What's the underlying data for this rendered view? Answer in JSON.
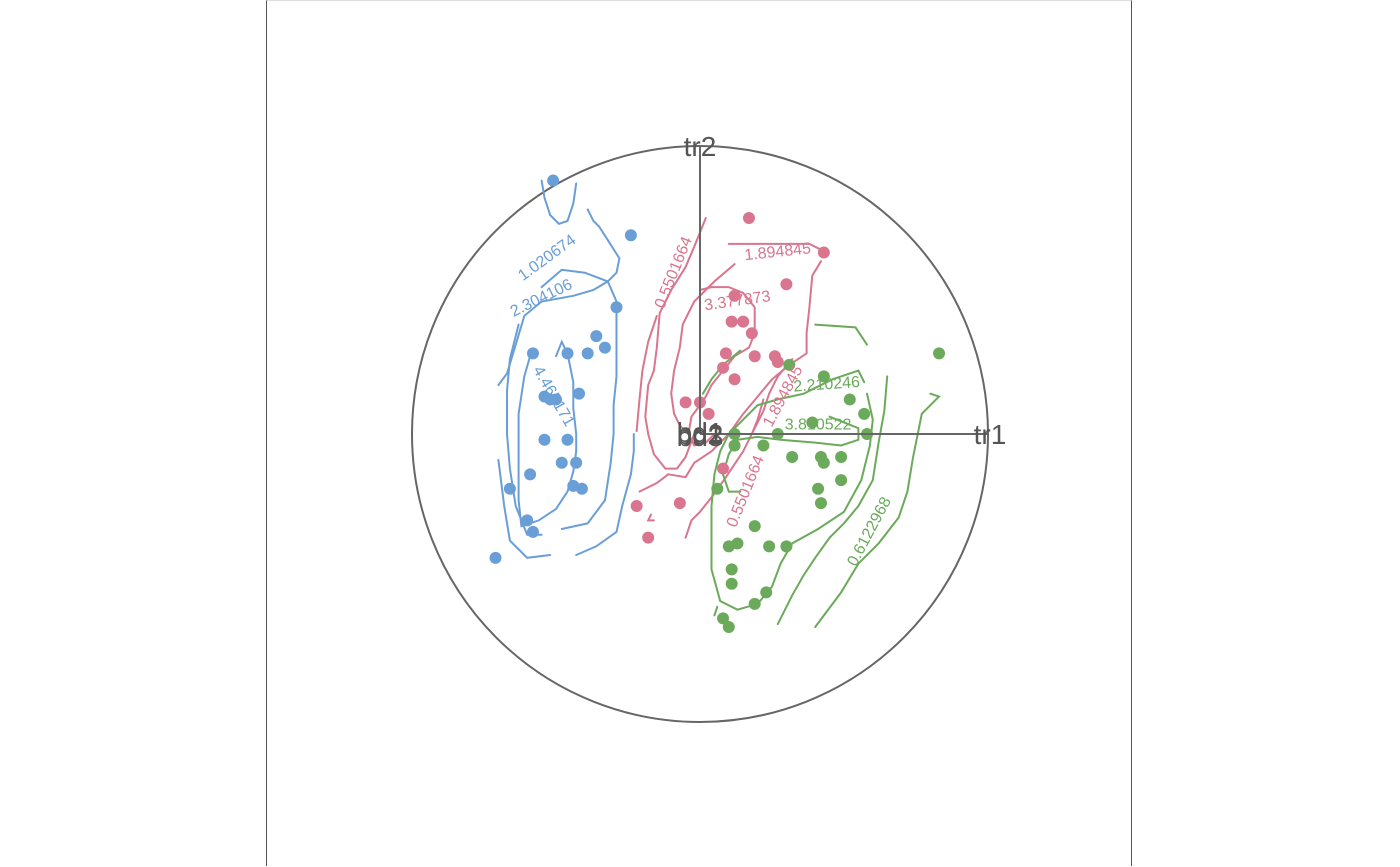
{
  "chart_data": {
    "type": "scatter",
    "title": "",
    "axes": [
      {
        "name": "tr1",
        "direction": [
          1,
          0
        ]
      },
      {
        "name": "tr2",
        "direction": [
          0,
          1
        ]
      },
      {
        "name": "bd1",
        "direction": [
          0,
          0
        ]
      },
      {
        "name": "bd2",
        "direction": [
          0,
          0
        ]
      },
      {
        "name": "bd3",
        "direction": [
          0,
          0
        ]
      }
    ],
    "colors": {
      "blue": "#6a9ed6",
      "pink": "#d9758e",
      "green": "#6aaa5a",
      "frame": "#666666"
    },
    "series": [
      {
        "color": "#6a9ed6",
        "points": [
          [
            -0.51,
            0.88
          ],
          [
            -0.24,
            0.69
          ],
          [
            -0.29,
            0.44
          ],
          [
            -0.36,
            0.34
          ],
          [
            -0.46,
            0.28
          ],
          [
            -0.39,
            0.28
          ],
          [
            -0.33,
            0.3
          ],
          [
            -0.42,
            0.14
          ],
          [
            -0.58,
            0.28
          ],
          [
            -0.54,
            0.13
          ],
          [
            -0.52,
            0.12
          ],
          [
            -0.5,
            0.12
          ],
          [
            -0.54,
            -0.02
          ],
          [
            -0.46,
            -0.02
          ],
          [
            -0.48,
            -0.1
          ],
          [
            -0.43,
            -0.1
          ],
          [
            -0.59,
            -0.14
          ],
          [
            -0.66,
            -0.19
          ],
          [
            -0.44,
            -0.18
          ],
          [
            -0.41,
            -0.19
          ],
          [
            -0.6,
            -0.3
          ],
          [
            -0.58,
            -0.34
          ],
          [
            -0.71,
            -0.43
          ]
        ],
        "contours": [
          {
            "level": "1.020674"
          },
          {
            "level": "2.304106"
          },
          {
            "level": "4.465171"
          }
        ]
      },
      {
        "color": "#d9758e",
        "points": [
          [
            0.17,
            0.75
          ],
          [
            0.43,
            0.63
          ],
          [
            0.3,
            0.52
          ],
          [
            0.12,
            0.48
          ],
          [
            0.11,
            0.39
          ],
          [
            0.15,
            0.39
          ],
          [
            0.18,
            0.35
          ],
          [
            0.09,
            0.28
          ],
          [
            0.19,
            0.27
          ],
          [
            0.26,
            0.27
          ],
          [
            0.27,
            0.25
          ],
          [
            0.08,
            0.23
          ],
          [
            0.12,
            0.19
          ],
          [
            -0.05,
            0.11
          ],
          [
            0.0,
            0.11
          ],
          [
            0.03,
            0.07
          ],
          [
            0.08,
            -0.12
          ],
          [
            -0.07,
            -0.24
          ],
          [
            -0.22,
            -0.25
          ],
          [
            -0.18,
            -0.36
          ]
        ],
        "contours": [
          {
            "level": "0.5501664"
          },
          {
            "level": "1.894845"
          },
          {
            "level": "3.377873"
          },
          {
            "level": "1.894845"
          },
          {
            "level": "0.5501664"
          }
        ]
      },
      {
        "color": "#6aaa5a",
        "points": [
          [
            0.83,
            0.28
          ],
          [
            0.31,
            0.24
          ],
          [
            0.43,
            0.2
          ],
          [
            0.52,
            0.12
          ],
          [
            0.57,
            0.07
          ],
          [
            0.39,
            0.04
          ],
          [
            0.58,
            0.0
          ],
          [
            0.12,
            0.0
          ],
          [
            0.27,
            0.0
          ],
          [
            0.12,
            -0.04
          ],
          [
            0.22,
            -0.04
          ],
          [
            0.32,
            -0.08
          ],
          [
            0.42,
            -0.08
          ],
          [
            0.43,
            -0.1
          ],
          [
            0.49,
            -0.08
          ],
          [
            0.06,
            -0.19
          ],
          [
            0.49,
            -0.16
          ],
          [
            0.41,
            -0.19
          ],
          [
            0.42,
            -0.24
          ],
          [
            0.19,
            -0.32
          ],
          [
            0.1,
            -0.39
          ],
          [
            0.13,
            -0.38
          ],
          [
            0.24,
            -0.39
          ],
          [
            0.3,
            -0.39
          ],
          [
            0.11,
            -0.47
          ],
          [
            0.11,
            -0.52
          ],
          [
            0.23,
            -0.55
          ],
          [
            0.19,
            -0.59
          ],
          [
            0.08,
            -0.64
          ],
          [
            0.1,
            -0.67
          ]
        ],
        "contours": [
          {
            "level": "0.6122968"
          },
          {
            "level": "2.210246"
          },
          {
            "level": "3.810522"
          }
        ]
      }
    ],
    "grid": false,
    "legend": "none",
    "circle_boundary": true
  }
}
